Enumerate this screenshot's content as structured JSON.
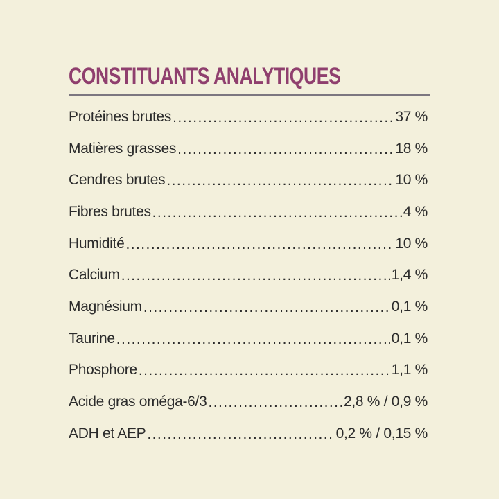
{
  "title": "CONSTITUANTS ANALYTIQUES",
  "rows": [
    {
      "label": "Protéines brutes",
      "value": "37 %"
    },
    {
      "label": "Matières grasses",
      "value": "18 %"
    },
    {
      "label": "Cendres brutes",
      "value": "10 %"
    },
    {
      "label": "Fibres brutes",
      "value": "4 %"
    },
    {
      "label": "Humidité",
      "value": "10 %"
    },
    {
      "label": "Calcium",
      "value": "1,4 %"
    },
    {
      "label": "Magnésium",
      "value": "0,1 %"
    },
    {
      "label": "Taurine",
      "value": "0,1 %"
    },
    {
      "label": "Phosphore",
      "value": "1,1 %"
    },
    {
      "label": "Acide gras oméga-6/3",
      "value": "2,8 % / 0,9 %"
    },
    {
      "label": "ADH et AEP",
      "value": "0,2 % / 0,15 %"
    }
  ],
  "colors": {
    "background": "#f3f0dc",
    "title": "#8f3f6e",
    "rule": "#7c7780",
    "text": "#2b2b2b"
  }
}
